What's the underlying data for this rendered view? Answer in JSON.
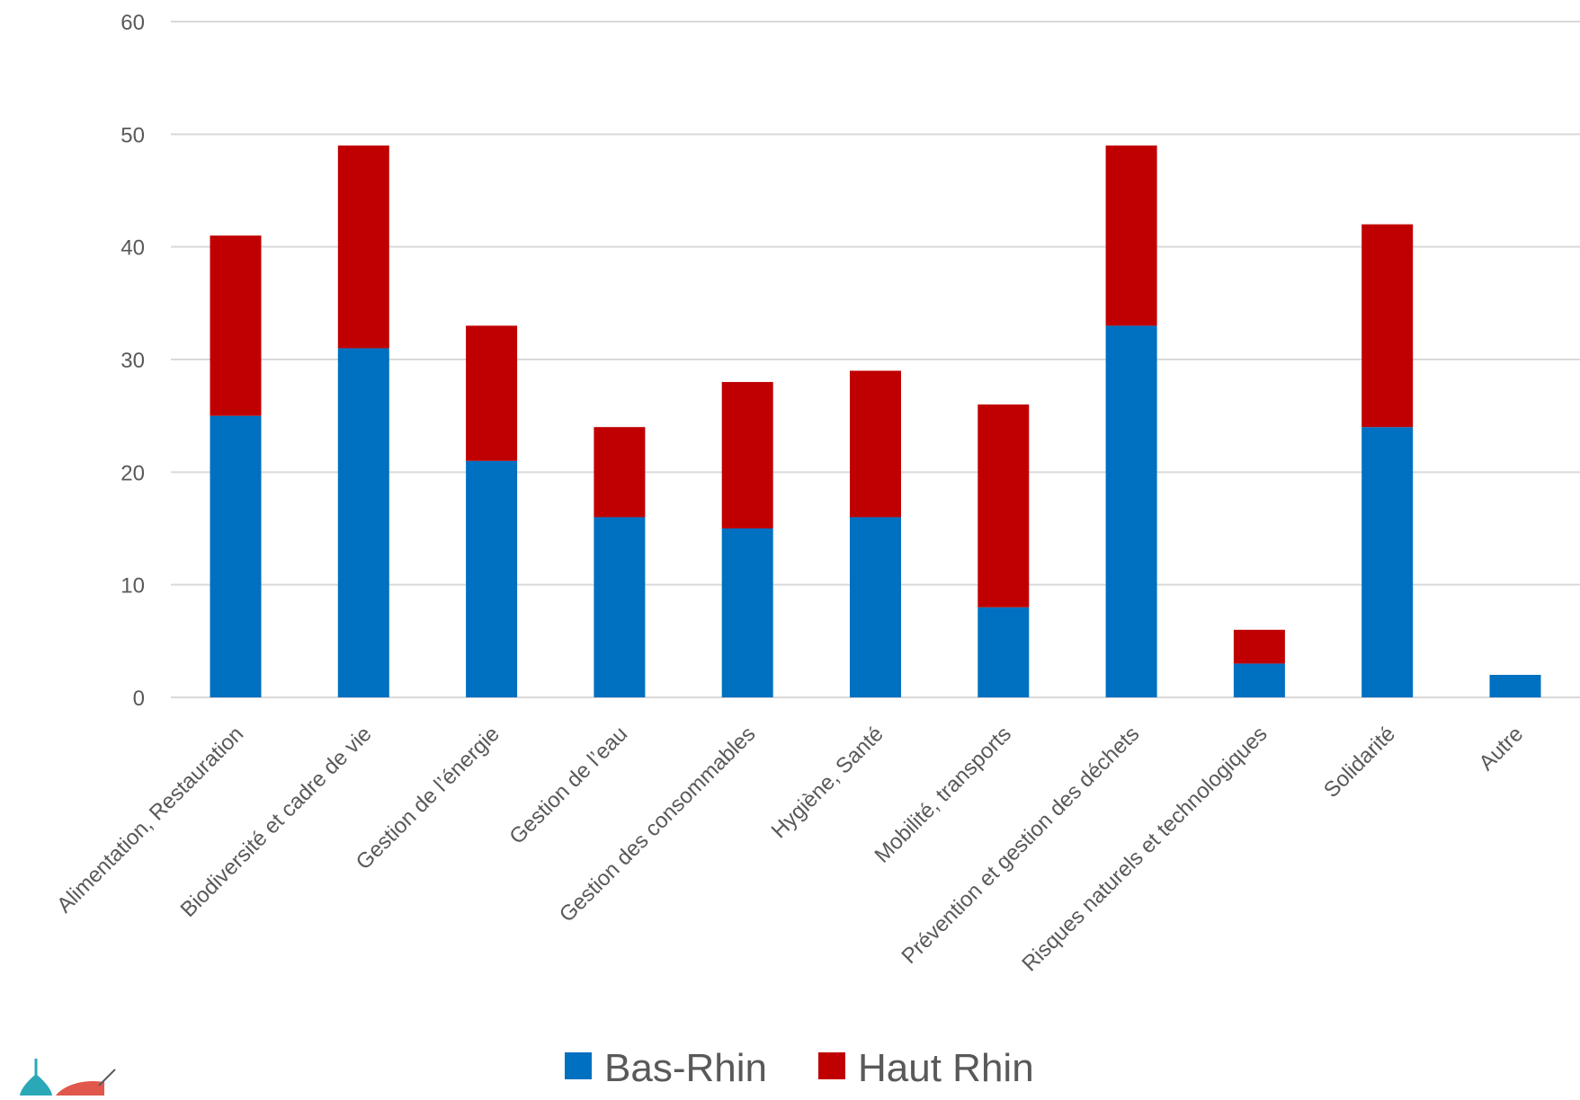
{
  "chart_data": {
    "type": "bar",
    "stacked": true,
    "title": "",
    "xlabel": "",
    "ylabel": "",
    "ylim": [
      0,
      60
    ],
    "yticks": [
      0,
      10,
      20,
      30,
      40,
      50,
      60
    ],
    "grid": true,
    "legend_position": "bottom",
    "categories": [
      "Alimentation, Restauration",
      "Biodiversité et cadre de vie",
      "Gestion de l’énergie",
      "Gestion de l’eau",
      "Gestion des consommables",
      "Hygiène, Santé",
      "Mobilité, transports",
      "Prévention et gestion des déchets",
      "Risques naturels et technologiques",
      "Solidarité",
      "Autre"
    ],
    "series": [
      {
        "name": "Bas-Rhin",
        "color": "#0070C0",
        "values": [
          25,
          31,
          21,
          16,
          15,
          16,
          8,
          33,
          3,
          24,
          2
        ]
      },
      {
        "name": "Haut Rhin",
        "color": "#C00000",
        "values": [
          16,
          18,
          12,
          8,
          13,
          13,
          18,
          16,
          3,
          18,
          0
        ]
      }
    ]
  },
  "colors": {
    "gridline": "#D9D9D9",
    "axis_text": "#595959",
    "logo_teal": "#2AA8B8",
    "logo_red": "#E0584B"
  }
}
